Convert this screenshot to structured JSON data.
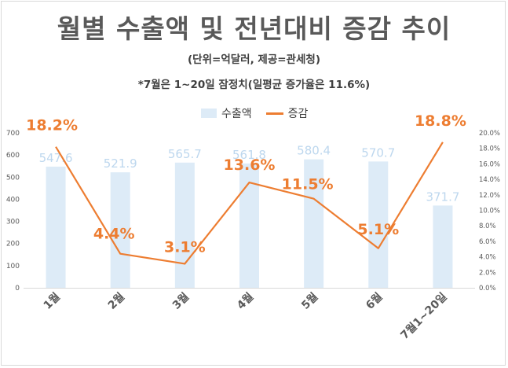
{
  "title": "월별 수출액 및 전년대비 증감 추이",
  "subtitle_unit": "(단위=억달러, 제공=관세청)",
  "subtitle_note": "*7월은 1~20일 잠정치(일평균 증가율은 11.6%)",
  "legend": {
    "bar": "수출액",
    "line": "증감"
  },
  "colors": {
    "bar": "#ddebf7",
    "bar_label": "#bdd7ee",
    "line": "#ed7d31",
    "axis_text": "#595959"
  },
  "chart_data": {
    "type": "bar+line",
    "categories": [
      "1월",
      "2월",
      "3월",
      "4월",
      "5월",
      "6월",
      "7월1~20일"
    ],
    "series": [
      {
        "name": "수출액",
        "type": "bar",
        "axis": "left",
        "values": [
          547.6,
          521.9,
          565.7,
          561.8,
          580.4,
          570.7,
          371.7
        ]
      },
      {
        "name": "증감",
        "type": "line",
        "axis": "right",
        "unit": "%",
        "values": [
          18.2,
          4.4,
          3.1,
          13.6,
          11.5,
          5.1,
          18.8
        ]
      }
    ],
    "bar_labels": [
      "547.6",
      "521.9",
      "565.7",
      "561.8",
      "580.4",
      "570.7",
      "371.7"
    ],
    "line_labels": [
      "18.2%",
      "4.4%",
      "3.1%",
      "13.6%",
      "11.5%",
      "5.1%",
      "18.8%"
    ],
    "y_left": {
      "min": 0,
      "max": 700,
      "ticks": [
        "0",
        "100",
        "200",
        "300",
        "400",
        "500",
        "600",
        "700"
      ]
    },
    "y_right": {
      "min": 0,
      "max": 20,
      "ticks": [
        "0.0%",
        "2.0%",
        "4.0%",
        "6.0%",
        "8.0%",
        "10.0%",
        "12.0%",
        "14.0%",
        "16.0%",
        "18.0%",
        "20.0%"
      ]
    },
    "grid": false,
    "legend_position": "top"
  }
}
